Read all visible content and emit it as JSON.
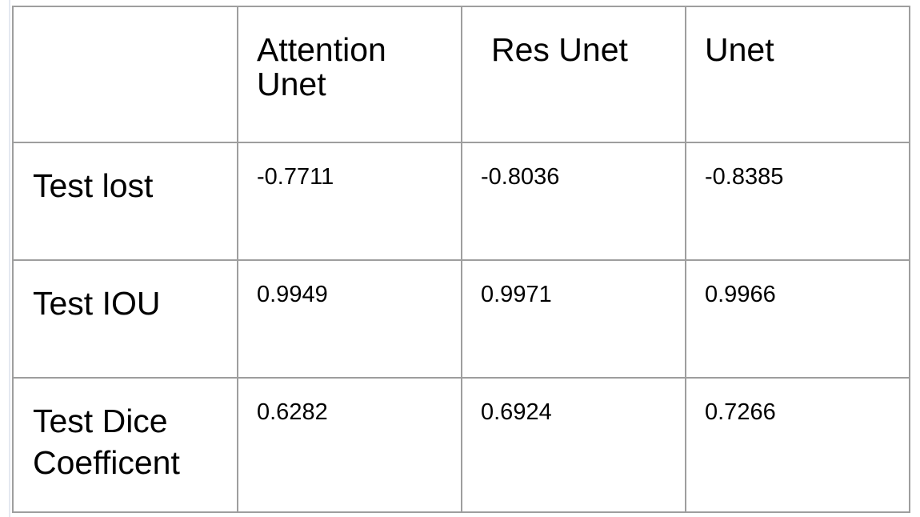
{
  "table": {
    "corner": "",
    "columns": [
      "Attention Unet",
      "Res Unet",
      "Unet"
    ],
    "rows": [
      {
        "label": "Test lost",
        "values": [
          "-0.7711",
          "-0.8036",
          "-0.8385"
        ]
      },
      {
        "label": "Test IOU",
        "values": [
          "0.9949",
          "0.9971",
          "0.9966"
        ]
      },
      {
        "label": "Test Dice Coefficent",
        "values": [
          "0.6282",
          "0.6924",
          "0.7266"
        ]
      }
    ]
  }
}
